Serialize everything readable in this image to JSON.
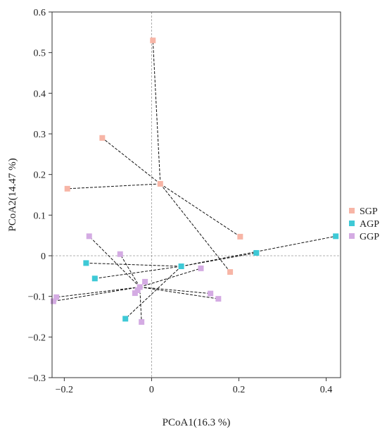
{
  "chart_data": {
    "type": "scatter",
    "title": "",
    "xlabel": "PCoA1(16.3 %)",
    "ylabel": "PCoA2(14.47 %)",
    "xlim": [
      -0.228,
      0.433
    ],
    "ylim": [
      -0.3,
      0.6
    ],
    "xticks": [
      -0.2,
      0,
      0.2,
      0.4
    ],
    "xtick_labels": [
      "−0.2",
      "0",
      "0.2",
      "0.4"
    ],
    "yticks": [
      -0.3,
      -0.2,
      -0.1,
      0,
      0.1,
      0.2,
      0.3,
      0.4,
      0.5,
      0.6
    ],
    "ytick_labels": [
      "−0.3",
      "−0.2",
      "−0.1",
      "0",
      "0.1",
      "0.2",
      "0.3",
      "0.4",
      "0.5",
      "0.6"
    ],
    "reference_lines": {
      "x": 0,
      "y": 0,
      "style": "dashed"
    },
    "legend_position": "right",
    "series": [
      {
        "name": "SGP",
        "color": "#f7b5a6",
        "centroid": [
          0.02,
          0.177
        ],
        "points": [
          [
            0.003,
            0.53
          ],
          [
            -0.113,
            0.29
          ],
          [
            -0.193,
            0.165
          ],
          [
            0.02,
            0.177
          ],
          [
            0.203,
            0.047
          ],
          [
            0.18,
            -0.04
          ]
        ]
      },
      {
        "name": "AGP",
        "color": "#3ec9d6",
        "centroid": [
          0.068,
          -0.026
        ],
        "points": [
          [
            -0.15,
            -0.018
          ],
          [
            -0.13,
            -0.056
          ],
          [
            -0.06,
            -0.155
          ],
          [
            0.068,
            -0.026
          ],
          [
            0.24,
            0.007
          ],
          [
            0.422,
            0.048
          ]
        ]
      },
      {
        "name": "GGP",
        "color": "#d4abe3",
        "centroid": [
          -0.027,
          -0.077
        ],
        "points": [
          [
            -0.143,
            0.048
          ],
          [
            -0.072,
            0.004
          ],
          [
            -0.038,
            -0.092
          ],
          [
            -0.032,
            -0.085
          ],
          [
            -0.027,
            -0.077
          ],
          [
            -0.015,
            -0.064
          ],
          [
            -0.023,
            -0.163
          ],
          [
            0.113,
            -0.031
          ],
          [
            0.135,
            -0.093
          ],
          [
            0.153,
            -0.106
          ],
          [
            -0.218,
            -0.102
          ],
          [
            -0.225,
            -0.112
          ]
        ]
      }
    ]
  }
}
